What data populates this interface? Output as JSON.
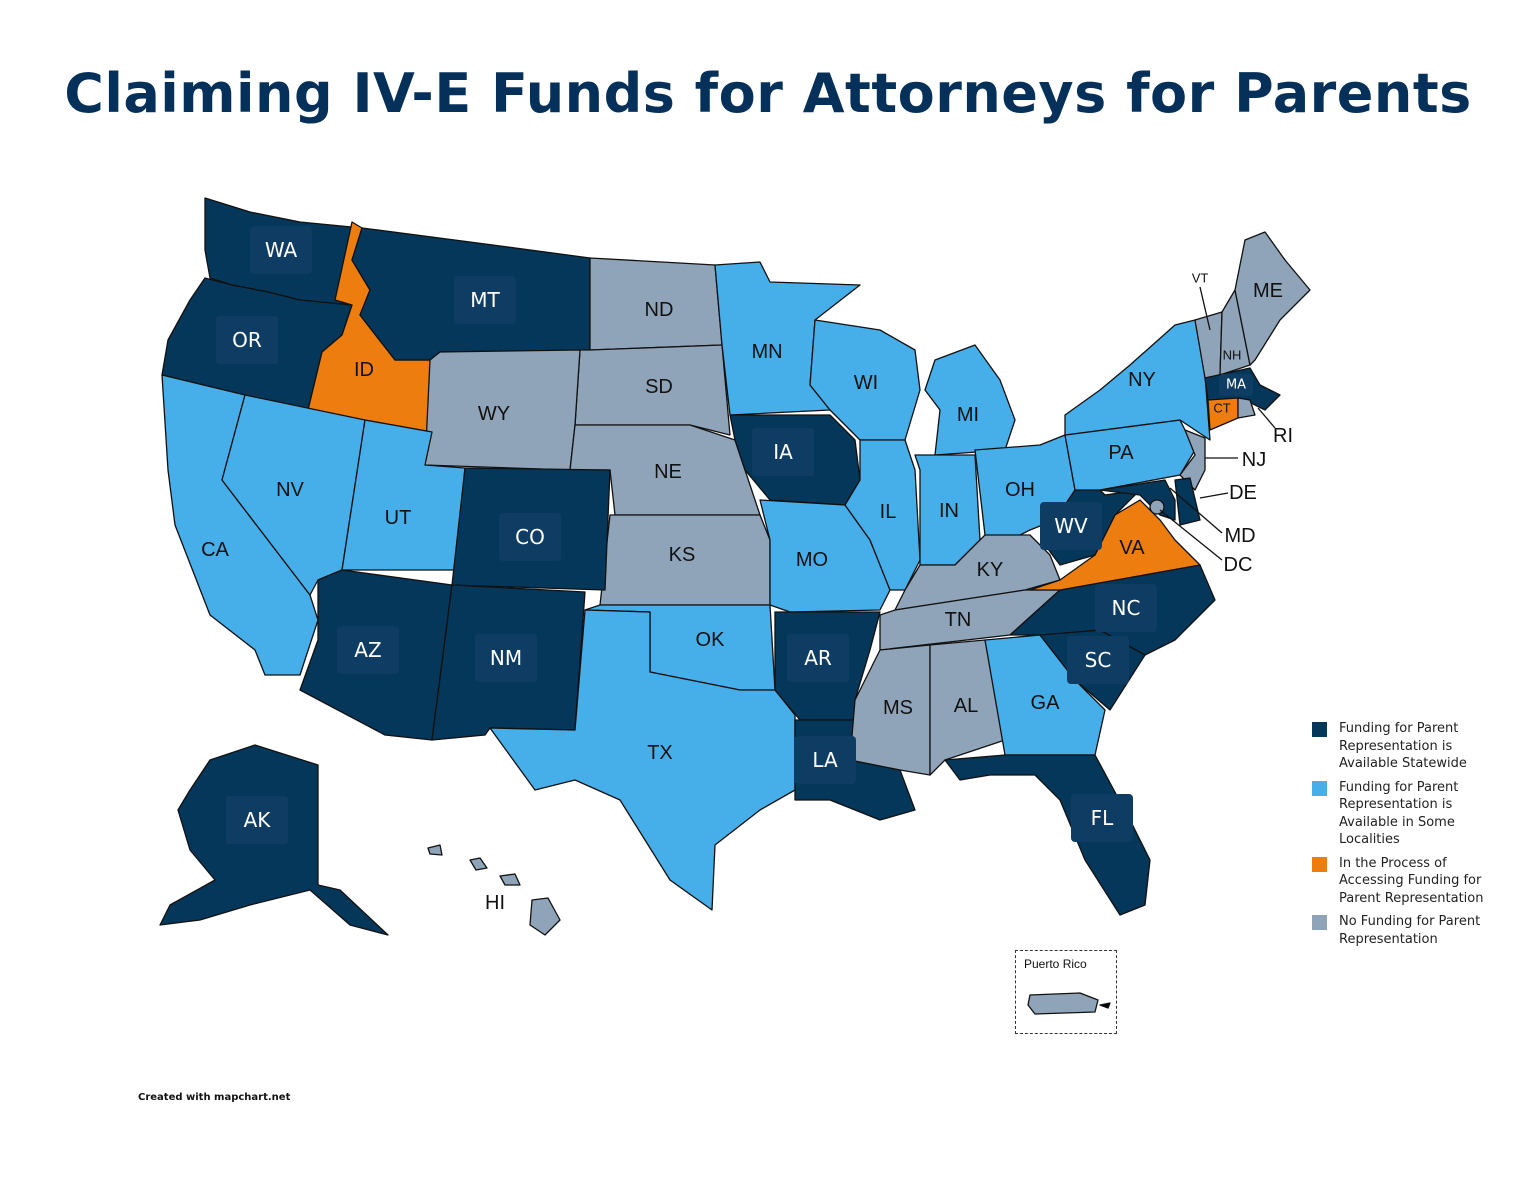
{
  "title": "Claiming IV-E Funds for Attorneys for Parents",
  "colors": {
    "statewide": "#05375a",
    "some_localities": "#46aee8",
    "in_process": "#ed7d0f",
    "no_funding": "#8fa4b8",
    "title": "#05305a"
  },
  "legend": {
    "items": [
      {
        "key": "statewide",
        "label": "Funding for Parent Representation is Available Statewide"
      },
      {
        "key": "some_localities",
        "label": "Funding for Parent Representation is Available in Some Localities"
      },
      {
        "key": "in_process",
        "label": "In the Process of Accessing Funding for Parent Representation"
      },
      {
        "key": "no_funding",
        "label": "No Funding for Parent Representation"
      }
    ]
  },
  "inset": {
    "puerto_rico_label": "Puerto Rico",
    "puerto_rico_status": "no_funding"
  },
  "credit": "Created with mapchart.net",
  "states": [
    {
      "abbr": "WA",
      "status": "statewide"
    },
    {
      "abbr": "OR",
      "status": "statewide"
    },
    {
      "abbr": "ID",
      "status": "in_process"
    },
    {
      "abbr": "MT",
      "status": "statewide"
    },
    {
      "abbr": "ND",
      "status": "no_funding"
    },
    {
      "abbr": "SD",
      "status": "no_funding"
    },
    {
      "abbr": "WY",
      "status": "no_funding"
    },
    {
      "abbr": "NE",
      "status": "no_funding"
    },
    {
      "abbr": "KS",
      "status": "no_funding"
    },
    {
      "abbr": "CA",
      "status": "some_localities"
    },
    {
      "abbr": "NV",
      "status": "some_localities"
    },
    {
      "abbr": "UT",
      "status": "some_localities"
    },
    {
      "abbr": "CO",
      "status": "statewide"
    },
    {
      "abbr": "AZ",
      "status": "statewide"
    },
    {
      "abbr": "NM",
      "status": "statewide"
    },
    {
      "abbr": "OK",
      "status": "some_localities"
    },
    {
      "abbr": "TX",
      "status": "some_localities"
    },
    {
      "abbr": "MN",
      "status": "some_localities"
    },
    {
      "abbr": "IA",
      "status": "statewide"
    },
    {
      "abbr": "MO",
      "status": "some_localities"
    },
    {
      "abbr": "AR",
      "status": "statewide"
    },
    {
      "abbr": "LA",
      "status": "statewide"
    },
    {
      "abbr": "WI",
      "status": "some_localities"
    },
    {
      "abbr": "IL",
      "status": "some_localities"
    },
    {
      "abbr": "MI",
      "status": "some_localities"
    },
    {
      "abbr": "IN",
      "status": "some_localities"
    },
    {
      "abbr": "OH",
      "status": "some_localities"
    },
    {
      "abbr": "KY",
      "status": "no_funding"
    },
    {
      "abbr": "TN",
      "status": "no_funding"
    },
    {
      "abbr": "MS",
      "status": "no_funding"
    },
    {
      "abbr": "AL",
      "status": "no_funding"
    },
    {
      "abbr": "GA",
      "status": "some_localities"
    },
    {
      "abbr": "FL",
      "status": "statewide"
    },
    {
      "abbr": "SC",
      "status": "statewide"
    },
    {
      "abbr": "NC",
      "status": "statewide"
    },
    {
      "abbr": "VA",
      "status": "in_process"
    },
    {
      "abbr": "WV",
      "status": "statewide"
    },
    {
      "abbr": "PA",
      "status": "some_localities"
    },
    {
      "abbr": "NY",
      "status": "some_localities"
    },
    {
      "abbr": "VT",
      "status": "no_funding"
    },
    {
      "abbr": "NH",
      "status": "no_funding"
    },
    {
      "abbr": "ME",
      "status": "no_funding"
    },
    {
      "abbr": "MA",
      "status": "statewide"
    },
    {
      "abbr": "CT",
      "status": "in_process"
    },
    {
      "abbr": "RI",
      "status": "no_funding"
    },
    {
      "abbr": "NJ",
      "status": "no_funding"
    },
    {
      "abbr": "DE",
      "status": "statewide"
    },
    {
      "abbr": "MD",
      "status": "statewide"
    },
    {
      "abbr": "DC",
      "status": "no_funding"
    },
    {
      "abbr": "AK",
      "status": "statewide"
    },
    {
      "abbr": "HI",
      "status": "no_funding"
    }
  ]
}
